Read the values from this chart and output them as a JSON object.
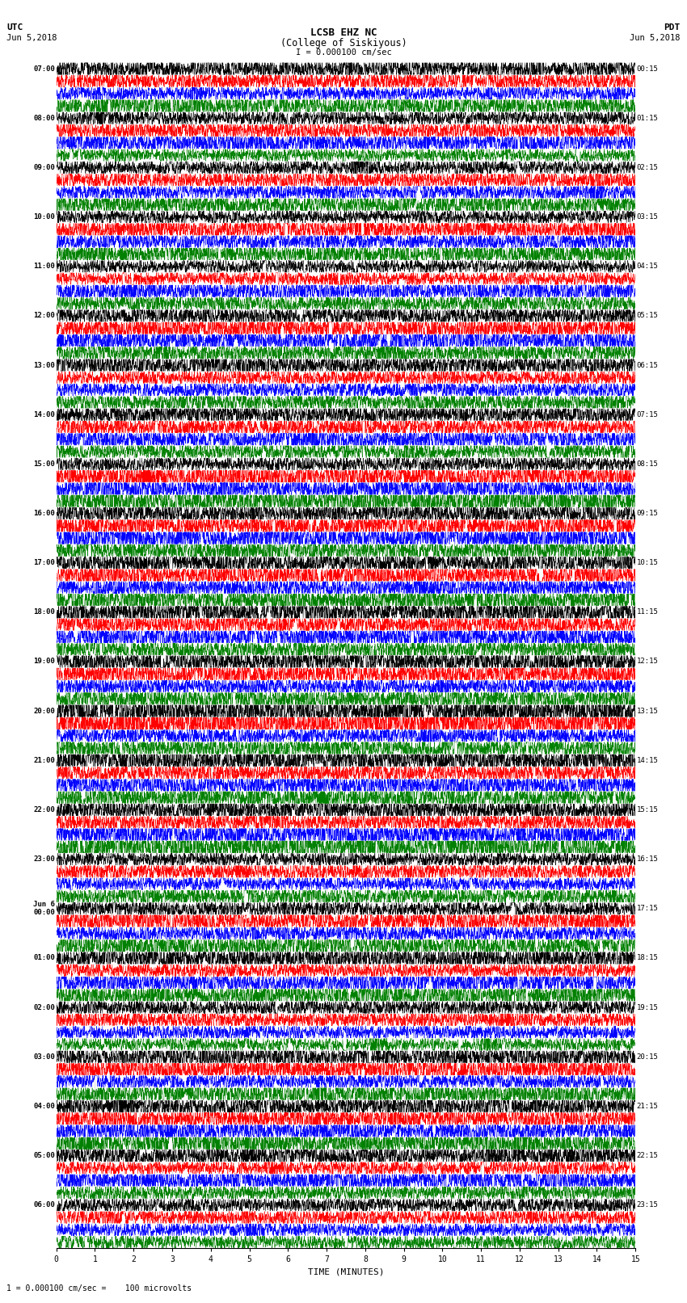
{
  "title_line1": "LCSB EHZ NC",
  "title_line2": "(College of Siskiyous)",
  "scale_text": "I = 0.000100 cm/sec",
  "footer_text": "1 = 0.000100 cm/sec =    100 microvolts",
  "utc_label": "UTC",
  "utc_date": "Jun 5,2018",
  "pdt_label": "PDT",
  "pdt_date": "Jun 5,2018",
  "xlabel": "TIME (MINUTES)",
  "xlim": [
    0,
    15
  ],
  "xticks": [
    0,
    1,
    2,
    3,
    4,
    5,
    6,
    7,
    8,
    9,
    10,
    11,
    12,
    13,
    14,
    15
  ],
  "trace_colors": [
    "black",
    "red",
    "blue",
    "green"
  ],
  "n_rows": 96,
  "background_color": "white",
  "left_times": [
    "07:00",
    "",
    "",
    "",
    "08:00",
    "",
    "",
    "",
    "09:00",
    "",
    "",
    "",
    "10:00",
    "",
    "",
    "",
    "11:00",
    "",
    "",
    "",
    "12:00",
    "",
    "",
    "",
    "13:00",
    "",
    "",
    "",
    "14:00",
    "",
    "",
    "",
    "15:00",
    "",
    "",
    "",
    "16:00",
    "",
    "",
    "",
    "17:00",
    "",
    "",
    "",
    "18:00",
    "",
    "",
    "",
    "19:00",
    "",
    "",
    "",
    "20:00",
    "",
    "",
    "",
    "21:00",
    "",
    "",
    "",
    "22:00",
    "",
    "",
    "",
    "23:00",
    "",
    "",
    "",
    "Jun 6\n00:00",
    "",
    "",
    "",
    "01:00",
    "",
    "",
    "",
    "02:00",
    "",
    "",
    "",
    "03:00",
    "",
    "",
    "",
    "04:00",
    "",
    "",
    "",
    "05:00",
    "",
    "",
    "",
    "06:00",
    "",
    "",
    ""
  ],
  "right_times": [
    "00:15",
    "",
    "",
    "",
    "01:15",
    "",
    "",
    "",
    "02:15",
    "",
    "",
    "",
    "03:15",
    "",
    "",
    "",
    "04:15",
    "",
    "",
    "",
    "05:15",
    "",
    "",
    "",
    "06:15",
    "",
    "",
    "",
    "07:15",
    "",
    "",
    "",
    "08:15",
    "",
    "",
    "",
    "09:15",
    "",
    "",
    "",
    "10:15",
    "",
    "",
    "",
    "11:15",
    "",
    "",
    "",
    "12:15",
    "",
    "",
    "",
    "13:15",
    "",
    "",
    "",
    "14:15",
    "",
    "",
    "",
    "15:15",
    "",
    "",
    "",
    "16:15",
    "",
    "",
    "",
    "17:15",
    "",
    "",
    "",
    "18:15",
    "",
    "",
    "",
    "19:15",
    "",
    "",
    "",
    "20:15",
    "",
    "",
    "",
    "21:15",
    "",
    "",
    "",
    "22:15",
    "",
    "",
    "",
    "23:15",
    "",
    "",
    ""
  ]
}
